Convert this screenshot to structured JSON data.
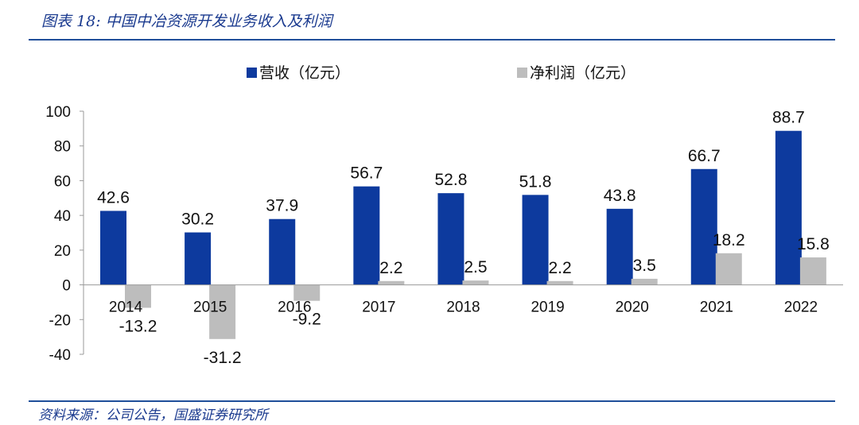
{
  "header": {
    "title": "图表 18:  中国中冶资源开发业务收入及利润"
  },
  "footer": {
    "source": "资料来源：公司公告，国盛证券研究所"
  },
  "colors": {
    "revenue": "#0d3a9e",
    "profit": "#bdbdbd",
    "accent": "#1f4e9a"
  },
  "chart_data": {
    "type": "bar",
    "title": "中国中冶资源开发业务收入及利润",
    "categories": [
      "2014",
      "2015",
      "2016",
      "2017",
      "2018",
      "2019",
      "2020",
      "2021",
      "2022"
    ],
    "series": [
      {
        "name": "营收（亿元）",
        "values": [
          42.6,
          30.2,
          37.9,
          56.7,
          52.8,
          51.8,
          43.8,
          66.7,
          88.7
        ],
        "labels": [
          "42.6",
          "30.2",
          "37.9",
          "56.7",
          "52.8",
          "51.8",
          "43.8",
          "66.7",
          "88.7"
        ]
      },
      {
        "name": "净利润（亿元）",
        "values": [
          -13.2,
          -31.2,
          -9.2,
          2.2,
          2.5,
          2.2,
          3.5,
          18.2,
          15.8
        ],
        "labels": [
          "-13.2",
          "-31.2",
          "-9.2",
          "2.2",
          "2.5",
          "2.2",
          "3.5",
          "18.2",
          "15.8"
        ]
      }
    ],
    "ylim": [
      -40,
      100
    ],
    "yticks": [
      100,
      80,
      60,
      40,
      20,
      0,
      -20,
      -40
    ],
    "ytick_labels": [
      "100",
      "80",
      "60",
      "40",
      "20",
      "0",
      "-20",
      "-40"
    ],
    "legend": "top-center",
    "grid": false,
    "xlabel": "",
    "ylabel": ""
  }
}
